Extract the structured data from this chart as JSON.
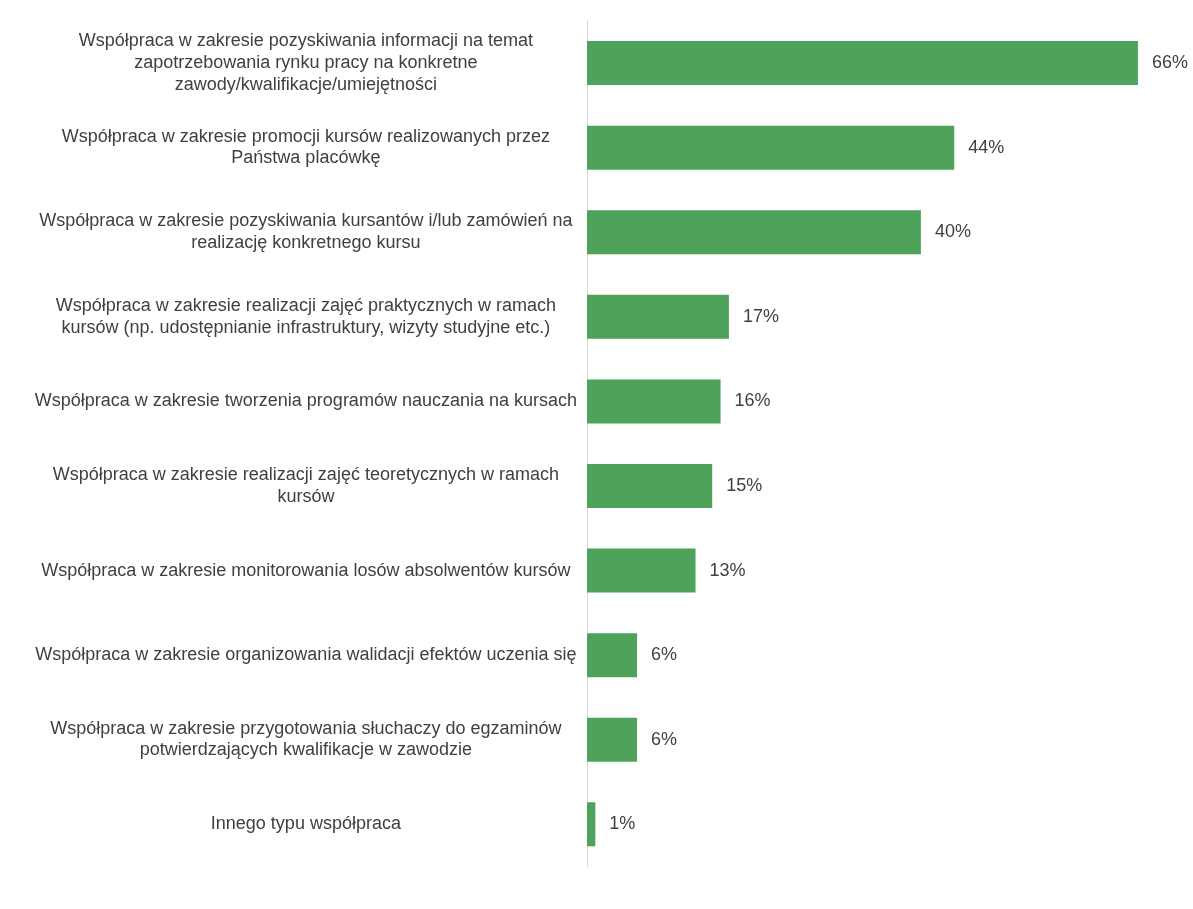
{
  "chart_data": {
    "type": "bar",
    "orientation": "horizontal",
    "categories": [
      "Współpraca w zakresie pozyskiwania informacji na temat zapotrzebowania rynku pracy na konkretne zawody/kwalifikacje/umiejętności",
      "Współpraca w zakresie promocji kursów realizowanych przez Państwa placówkę",
      "Współpraca w zakresie pozyskiwania kursantów i/lub zamówień na realizację konkretnego kursu",
      "Współpraca w zakresie realizacji zajęć praktycznych w ramach kursów (np. udostępnianie infrastruktury, wizyty studyjne etc.)",
      "Współpraca w zakresie tworzenia programów nauczania na kursach",
      "Współpraca w zakresie realizacji zajęć teoretycznych w ramach kursów",
      "Współpraca w zakresie monitorowania losów absolwentów kursów",
      "Współpraca w zakresie organizowania walidacji efektów uczenia się",
      "Współpraca w zakresie przygotowania słuchaczy do egzaminów potwierdzających kwalifikacje w zawodzie",
      "Innego typu współpraca"
    ],
    "values": [
      66,
      44,
      40,
      17,
      16,
      15,
      13,
      6,
      6,
      1
    ],
    "value_labels": [
      "66%",
      "44%",
      "40%",
      "17%",
      "16%",
      "15%",
      "13%",
      "6%",
      "6%",
      "1%"
    ],
    "color": "#4ea25a",
    "grid": false,
    "legend": false,
    "tick_labels": "y"
  }
}
